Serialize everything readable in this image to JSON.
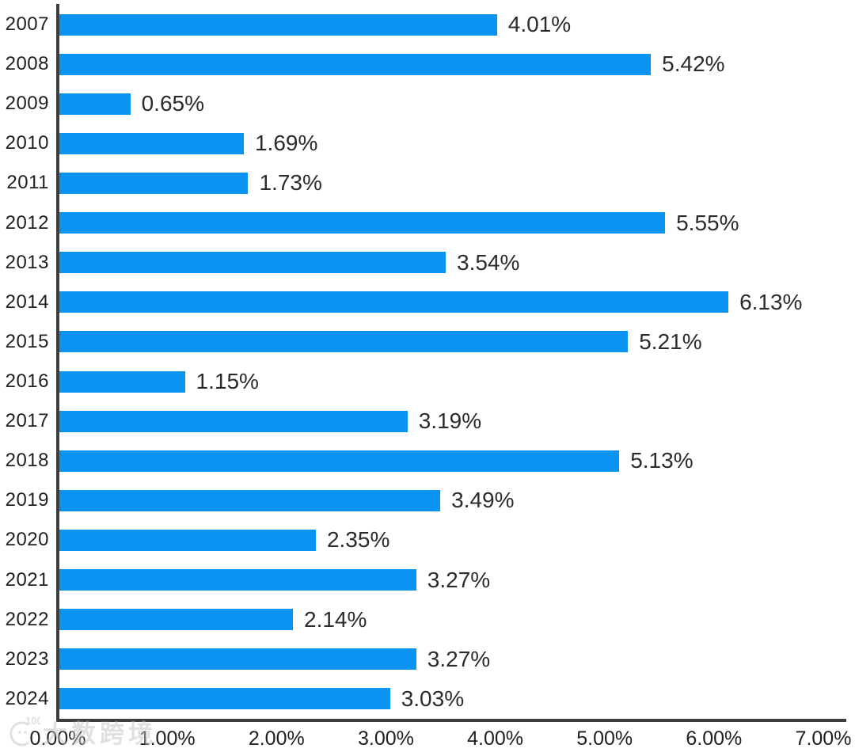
{
  "chart_data": {
    "type": "bar",
    "orientation": "horizontal",
    "title": "",
    "xlabel": "",
    "ylabel": "",
    "categories": [
      "2007",
      "2008",
      "2009",
      "2010",
      "2011",
      "2012",
      "2013",
      "2014",
      "2015",
      "2016",
      "2017",
      "2018",
      "2019",
      "2020",
      "2021",
      "2022",
      "2023",
      "2024"
    ],
    "values": [
      4.01,
      5.42,
      0.65,
      1.69,
      1.73,
      5.55,
      3.54,
      6.13,
      5.21,
      1.15,
      3.19,
      5.13,
      3.49,
      2.35,
      3.27,
      2.14,
      3.27,
      3.03
    ],
    "value_labels": [
      "4.01%",
      "5.42%",
      "0.65%",
      "1.69%",
      "1.73%",
      "5.55%",
      "3.54%",
      "6.13%",
      "5.21%",
      "1.15%",
      "3.19%",
      "5.13%",
      "3.49%",
      "2.35%",
      "3.27%",
      "2.14%",
      "3.27%",
      "3.03%"
    ],
    "xlim": [
      0,
      7
    ],
    "x_ticks": [
      "0.00%",
      "1.00%",
      "2.00%",
      "3.00%",
      "4.00%",
      "5.00%",
      "6.00%",
      "7.00%"
    ],
    "grid": false,
    "legend": null,
    "colors": {
      "bar": "#0994F2",
      "axis": "#3D3D3D",
      "value_label": "#2B2B2B",
      "tick_label": "#1F1F1F",
      "category_label": "#1F1F1F"
    }
  },
  "watermark": {
    "logo_text": "100",
    "text": "大数跨境"
  }
}
